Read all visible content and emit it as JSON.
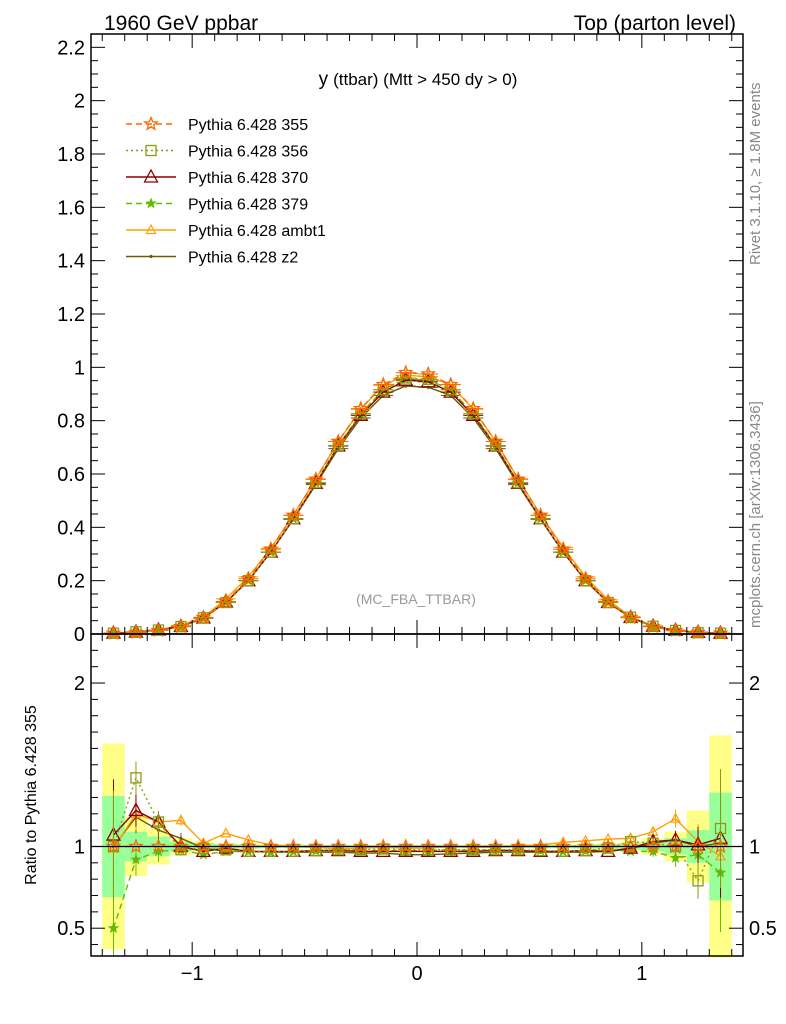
{
  "header": {
    "left": "1960 GeV ppbar",
    "right": "Top (parton level)"
  },
  "side": {
    "rivet": "Rivet 3.1.10, ≥ 1.8M events",
    "mcplots": "mcplots.cern.ch [arXiv:1306.3436]"
  },
  "colors": {
    "s355": "#ff6600",
    "s356": "#8c9c10",
    "s370": "#8b0000",
    "s379": "#66bb00",
    "ambt1": "#ffa000",
    "z2": "#6b5b00",
    "band_green": "#99ff99",
    "band_yellow": "#ffff88"
  },
  "chart_data": [
    {
      "type": "line",
      "title": "y (ttbar) (Mtt > 450 dy > 0)",
      "title_main": "y",
      "title_rest": "(ttbar) (Mtt > 450 dy > 0)",
      "annotation": "(MC_FBA_TTBAR)",
      "xlabel": "",
      "ylabel": "",
      "xlim": [
        -1.45,
        1.45
      ],
      "ylim": [
        0,
        2.25
      ],
      "yticks": [
        "0",
        "0.2",
        "0.4",
        "0.6",
        "0.8",
        "1",
        "1.2",
        "1.4",
        "1.6",
        "1.8",
        "2",
        "2.2"
      ],
      "legend_position": "top-left",
      "x": [
        -1.35,
        -1.25,
        -1.15,
        -1.05,
        -0.95,
        -0.85,
        -0.75,
        -0.65,
        -0.55,
        -0.45,
        -0.35,
        -0.25,
        -0.15,
        -0.05,
        0.05,
        0.15,
        0.25,
        0.35,
        0.45,
        0.55,
        0.65,
        0.75,
        0.85,
        0.95,
        1.05,
        1.15,
        1.25,
        1.35
      ],
      "series": [
        {
          "name": "Pythia 6.428 355",
          "values": [
            0.003,
            0.006,
            0.013,
            0.028,
            0.062,
            0.122,
            0.207,
            0.318,
            0.445,
            0.58,
            0.722,
            0.845,
            0.935,
            0.98,
            0.975,
            0.935,
            0.845,
            0.722,
            0.58,
            0.445,
            0.318,
            0.207,
            0.122,
            0.062,
            0.028,
            0.013,
            0.006,
            0.003
          ]
        },
        {
          "name": "Pythia 6.428 356",
          "values": [
            0.003,
            0.0085,
            0.015,
            0.028,
            0.061,
            0.118,
            0.2,
            0.307,
            0.432,
            0.567,
            0.707,
            0.826,
            0.916,
            0.96,
            0.955,
            0.916,
            0.826,
            0.707,
            0.567,
            0.432,
            0.307,
            0.2,
            0.118,
            0.063,
            0.029,
            0.0135,
            0.0048,
            0.0033
          ]
        },
        {
          "name": "Pythia 6.428 370",
          "values": [
            0.0032,
            0.0073,
            0.015,
            0.028,
            0.06,
            0.12,
            0.2,
            0.307,
            0.432,
            0.565,
            0.705,
            0.82,
            0.907,
            0.952,
            0.946,
            0.907,
            0.82,
            0.705,
            0.565,
            0.432,
            0.307,
            0.2,
            0.118,
            0.062,
            0.029,
            0.0135,
            0.006,
            0.0031
          ]
        },
        {
          "name": "Pythia 6.428 379",
          "values": [
            0.0015,
            0.0055,
            0.013,
            0.027,
            0.059,
            0.118,
            0.2,
            0.307,
            0.432,
            0.567,
            0.707,
            0.826,
            0.916,
            0.955,
            0.952,
            0.916,
            0.826,
            0.707,
            0.567,
            0.432,
            0.307,
            0.2,
            0.118,
            0.061,
            0.027,
            0.012,
            0.0055,
            0.0025
          ]
        },
        {
          "name": "Pythia 6.428 ambt1",
          "values": [
            0.003,
            0.0072,
            0.015,
            0.0325,
            0.063,
            0.132,
            0.214,
            0.322,
            0.446,
            0.582,
            0.722,
            0.843,
            0.933,
            0.97,
            0.965,
            0.935,
            0.843,
            0.722,
            0.582,
            0.446,
            0.325,
            0.214,
            0.128,
            0.065,
            0.03,
            0.0141,
            0.0062,
            0.0029
          ]
        },
        {
          "name": "Pythia 6.428 z2",
          "values": [
            0.0031,
            0.0072,
            0.015,
            0.03,
            0.062,
            0.118,
            0.2,
            0.307,
            0.43,
            0.56,
            0.695,
            0.81,
            0.895,
            0.93,
            0.925,
            0.895,
            0.81,
            0.695,
            0.56,
            0.43,
            0.307,
            0.2,
            0.118,
            0.062,
            0.029,
            0.0135,
            0.006,
            0.0031
          ]
        }
      ]
    },
    {
      "type": "line",
      "title": "",
      "xlabel": "",
      "ylabel": "Ratio to Pythia 6.428 355",
      "xlim": [
        -1.45,
        1.45
      ],
      "ylim": [
        0.33,
        2.3
      ],
      "xticks": [
        "−1",
        "0",
        "1"
      ],
      "yticks": [
        "0.5",
        "1",
        "2"
      ],
      "reference_band": {
        "x": [
          -1.35,
          -1.25,
          -1.15,
          -1.05,
          -0.95,
          -0.85,
          -0.75,
          -0.65,
          -0.55,
          -0.45,
          -0.35,
          -0.25,
          -0.15,
          -0.05,
          0.05,
          0.15,
          0.25,
          0.35,
          0.45,
          0.55,
          0.65,
          0.75,
          0.85,
          0.95,
          1.05,
          1.15,
          1.25,
          1.35
        ],
        "green": [
          0.31,
          0.09,
          0.06,
          0.03,
          0.02,
          0.015,
          0.012,
          0.01,
          0.01,
          0.008,
          0.008,
          0.008,
          0.008,
          0.008,
          0.008,
          0.008,
          0.008,
          0.008,
          0.008,
          0.01,
          0.01,
          0.012,
          0.015,
          0.02,
          0.03,
          0.05,
          0.1,
          0.33
        ],
        "yellow": [
          0.63,
          0.18,
          0.11,
          0.05,
          0.03,
          0.02,
          0.015,
          0.012,
          0.012,
          0.01,
          0.01,
          0.01,
          0.01,
          0.01,
          0.01,
          0.01,
          0.01,
          0.01,
          0.01,
          0.012,
          0.012,
          0.015,
          0.02,
          0.03,
          0.05,
          0.09,
          0.22,
          0.68
        ]
      },
      "series": [
        {
          "name": "Pythia 6.428 355",
          "values": [
            1,
            1,
            1,
            1,
            1,
            1,
            1,
            1,
            1,
            1,
            1,
            1,
            1,
            1,
            1,
            1,
            1,
            1,
            1,
            1,
            1,
            1,
            1,
            1,
            1,
            1,
            1,
            1
          ]
        },
        {
          "name": "Pythia 6.428 356",
          "values": [
            1.0,
            1.42,
            1.15,
            0.98,
            0.99,
            0.98,
            0.97,
            0.97,
            0.97,
            0.975,
            0.98,
            0.98,
            0.985,
            0.98,
            0.98,
            0.98,
            0.98,
            0.98,
            0.98,
            0.975,
            0.97,
            0.975,
            0.99,
            1.03,
            1.02,
            1.0,
            0.79,
            1.11
          ]
        },
        {
          "name": "Pythia 6.428 370",
          "values": [
            1.07,
            1.22,
            1.15,
            1.0,
            0.97,
            0.99,
            0.97,
            0.97,
            0.97,
            0.975,
            0.975,
            0.97,
            0.97,
            0.97,
            0.97,
            0.97,
            0.97,
            0.975,
            0.975,
            0.97,
            0.97,
            0.975,
            0.97,
            0.99,
            1.03,
            1.04,
            1.01,
            1.05
          ]
        },
        {
          "name": "Pythia 6.428 379",
          "values": [
            0.5,
            0.92,
            0.97,
            0.98,
            0.95,
            0.97,
            0.97,
            0.965,
            0.97,
            0.975,
            0.98,
            0.975,
            0.975,
            0.975,
            0.975,
            0.98,
            0.975,
            0.98,
            0.975,
            0.975,
            0.97,
            0.975,
            0.98,
            0.97,
            0.97,
            0.93,
            0.95,
            0.84
          ]
        },
        {
          "name": "Pythia 6.428 ambt1",
          "values": [
            0.99,
            1.2,
            1.15,
            1.16,
            1.02,
            1.08,
            1.04,
            1.01,
            1.0,
            0.995,
            0.985,
            0.99,
            0.995,
            0.99,
            0.99,
            1.0,
            0.995,
            0.995,
            1.005,
            1.01,
            1.025,
            1.035,
            1.045,
            1.05,
            1.09,
            1.17,
            1.03,
            0.94
          ]
        },
        {
          "name": "Pythia 6.428 z2",
          "values": [
            1.0,
            1.18,
            1.1,
            1.05,
            0.99,
            0.97,
            0.97,
            0.965,
            0.965,
            0.965,
            0.965,
            0.96,
            0.96,
            0.95,
            0.95,
            0.955,
            0.96,
            0.965,
            0.965,
            0.965,
            0.965,
            0.965,
            0.97,
            0.985,
            1.02,
            1.04,
            1.0,
            1.02
          ]
        }
      ]
    }
  ]
}
